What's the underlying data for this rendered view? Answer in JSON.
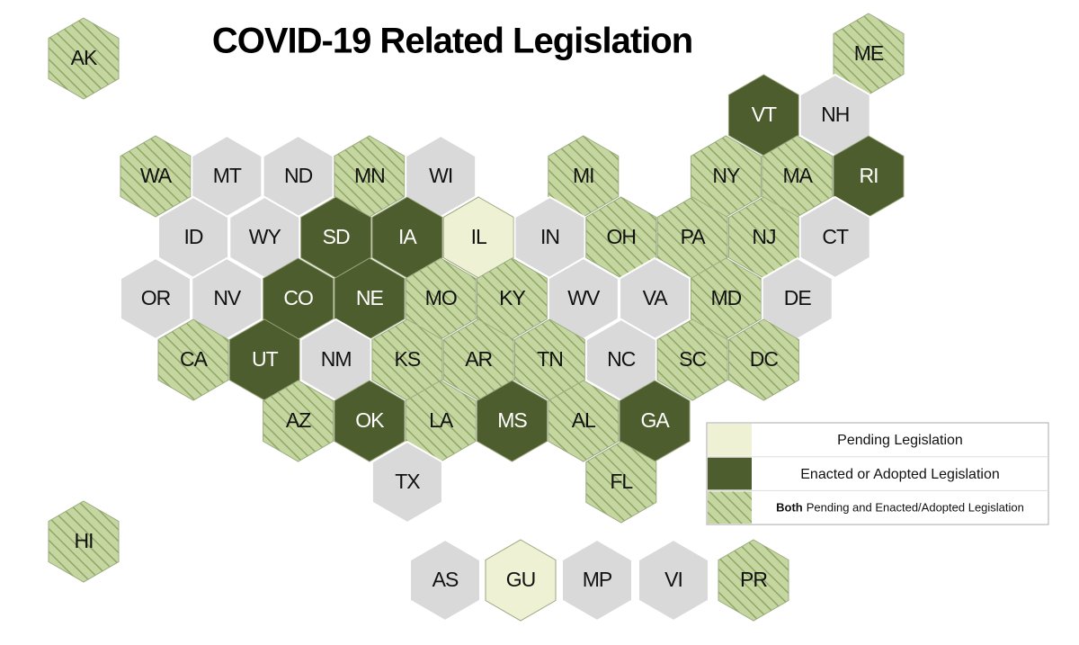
{
  "title": "COVID-19 Related Legislation",
  "hexes": [
    {
      "label": "AK",
      "color": "#c6d6a0",
      "hatch": true
    },
    {
      "label": "HI",
      "color": "#c6d6a0",
      "hatch": true
    },
    {
      "label": "ME",
      "color": "#c6d6a0",
      "hatch": true
    },
    {
      "label": "VT",
      "color": "#4e5d2e"
    },
    {
      "label": "NH",
      "color": "#d9d9d9"
    },
    {
      "label": "WA",
      "color": "#c6d6a0",
      "hatch": true
    },
    {
      "label": "MT",
      "color": "#d9d9d9"
    },
    {
      "label": "ND",
      "color": "#d9d9d9"
    },
    {
      "label": "MN",
      "color": "#c6d6a0",
      "hatch": true
    },
    {
      "label": "WI",
      "color": "#d9d9d9"
    },
    {
      "label": "MI",
      "color": "#c6d6a0",
      "hatch": true
    },
    {
      "label": "NY",
      "color": "#c6d6a0",
      "hatch": true
    },
    {
      "label": "MA",
      "color": "#c6d6a0",
      "hatch": true
    },
    {
      "label": "RI",
      "color": "#4e5d2e"
    },
    {
      "label": "ID",
      "color": "#d9d9d9"
    },
    {
      "label": "WY",
      "color": "#d9d9d9"
    },
    {
      "label": "SD",
      "color": "#4e5d2e"
    },
    {
      "label": "IA",
      "color": "#4e5d2e"
    },
    {
      "label": "IL",
      "color": "#eef1d3"
    },
    {
      "label": "IN",
      "color": "#d9d9d9"
    },
    {
      "label": "OH",
      "color": "#c6d6a0",
      "hatch": true
    },
    {
      "label": "PA",
      "color": "#c6d6a0",
      "hatch": true
    },
    {
      "label": "NJ",
      "color": "#c6d6a0",
      "hatch": true
    },
    {
      "label": "CT",
      "color": "#d9d9d9"
    },
    {
      "label": "OR",
      "color": "#d9d9d9"
    },
    {
      "label": "NV",
      "color": "#d9d9d9"
    },
    {
      "label": "CO",
      "color": "#4e5d2e"
    },
    {
      "label": "NE",
      "color": "#4e5d2e"
    },
    {
      "label": "MO",
      "color": "#c6d6a0",
      "hatch": true
    },
    {
      "label": "KY",
      "color": "#c6d6a0",
      "hatch": true
    },
    {
      "label": "WV",
      "color": "#d9d9d9"
    },
    {
      "label": "VA",
      "color": "#d9d9d9"
    },
    {
      "label": "MD",
      "color": "#c6d6a0",
      "hatch": true
    },
    {
      "label": "DE",
      "color": "#d9d9d9"
    },
    {
      "label": "CA",
      "color": "#c6d6a0",
      "hatch": true
    },
    {
      "label": "UT",
      "color": "#4e5d2e"
    },
    {
      "label": "NM",
      "color": "#d9d9d9"
    },
    {
      "label": "KS",
      "color": "#c6d6a0",
      "hatch": true
    },
    {
      "label": "AR",
      "color": "#c6d6a0",
      "hatch": true
    },
    {
      "label": "TN",
      "color": "#c6d6a0",
      "hatch": true
    },
    {
      "label": "NC",
      "color": "#d9d9d9"
    },
    {
      "label": "SC",
      "color": "#c6d6a0",
      "hatch": true
    },
    {
      "label": "DC",
      "color": "#c6d6a0",
      "hatch": true
    },
    {
      "label": "AZ",
      "color": "#c6d6a0",
      "hatch": true
    },
    {
      "label": "OK",
      "color": "#4e5d2e"
    },
    {
      "label": "LA",
      "color": "#c6d6a0",
      "hatch": true
    },
    {
      "label": "MS",
      "color": "#4e5d2e"
    },
    {
      "label": "AL",
      "color": "#c6d6a0",
      "hatch": true
    },
    {
      "label": "GA",
      "color": "#4e5d2e"
    },
    {
      "label": "TX",
      "color": "#d9d9d9"
    },
    {
      "label": "FL",
      "color": "#c6d6a0",
      "hatch": true
    },
    {
      "label": "AS",
      "color": "#d9d9d9"
    },
    {
      "label": "GU",
      "color": "#eef1d3"
    },
    {
      "label": "MP",
      "color": "#d9d9d9"
    },
    {
      "label": "VI",
      "color": "#d9d9d9"
    },
    {
      "label": "PR",
      "color": "#c6d6a0",
      "hatch": true
    }
  ],
  "legend": [
    {
      "label": "Pending Legislation",
      "color": "#eef1d3"
    },
    {
      "label": "Enacted or Adopted Legislation",
      "color": "#4e5d2e"
    },
    {
      "bold": "Both",
      "label": "Pending and Enacted/Adopted Legislation",
      "color": "#c6d6a0",
      "hatch": true
    }
  ]
}
